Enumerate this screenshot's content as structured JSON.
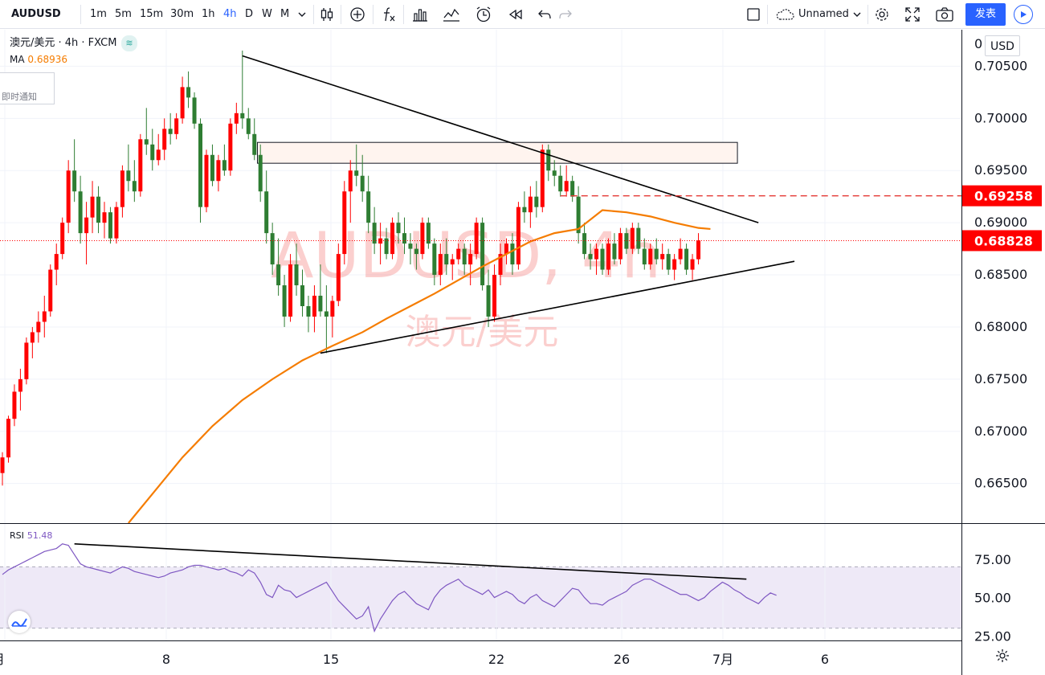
{
  "toolbar": {
    "symbol": "AUDUSD",
    "intervals": [
      "1m",
      "5m",
      "15m",
      "30m",
      "1h",
      "4h",
      "D",
      "W",
      "M"
    ],
    "active_interval": "4h",
    "layout_name": "Unnamed",
    "publish_label": "发表"
  },
  "legend": {
    "title": "澳元/美元 · 4h · FXCM",
    "ma_label": "MA",
    "ma_value": "0.68936",
    "rsi_label": "RSI",
    "rsi_value": "51.48",
    "alert_tab": "即时通知",
    "currency": "USD"
  },
  "watermark": {
    "line1": "AUDUSD, 4h",
    "line2": "澳元/美元"
  },
  "colors": {
    "up": "#ff0000",
    "down": "#2e7d32",
    "ma": "#f57c00",
    "rsi": "#7e57c2",
    "accent": "#2962ff"
  },
  "chart_data": {
    "type": "candlestick",
    "price_axis": {
      "min": 0.6612,
      "max": 0.7085,
      "ticks": [
        "0.70500",
        "0.70000",
        "0.69500",
        "0.69000",
        "0.68500",
        "0.68000",
        "0.67500",
        "0.67000",
        "0.66500"
      ],
      "tick_values": [
        0.705,
        0.7,
        0.695,
        0.69,
        0.685,
        0.68,
        0.675,
        0.67,
        0.665
      ],
      "top_partial_label": "0"
    },
    "time_axis": {
      "labels": [
        "月",
        "8",
        "15",
        "22",
        "26",
        "7月",
        "6"
      ]
    },
    "price_labels": [
      {
        "value": 0.69258,
        "text": "0.69258",
        "style": "dashed"
      },
      {
        "value": 0.68828,
        "text": "0.68828",
        "style": "last-price"
      }
    ],
    "candles": [
      [
        0.666,
        0.668,
        0.6648,
        0.6675
      ],
      [
        0.6675,
        0.6715,
        0.667,
        0.6712
      ],
      [
        0.6712,
        0.6745,
        0.6705,
        0.6738
      ],
      [
        0.6738,
        0.676,
        0.672,
        0.675
      ],
      [
        0.675,
        0.679,
        0.6745,
        0.6785
      ],
      [
        0.6785,
        0.68,
        0.677,
        0.6795
      ],
      [
        0.6795,
        0.6815,
        0.6785,
        0.6805
      ],
      [
        0.6805,
        0.683,
        0.679,
        0.6815
      ],
      [
        0.6815,
        0.686,
        0.681,
        0.6855
      ],
      [
        0.6855,
        0.688,
        0.684,
        0.687
      ],
      [
        0.687,
        0.6905,
        0.6865,
        0.69
      ],
      [
        0.69,
        0.696,
        0.689,
        0.695
      ],
      [
        0.695,
        0.698,
        0.692,
        0.693
      ],
      [
        0.693,
        0.6945,
        0.688,
        0.689
      ],
      [
        0.689,
        0.692,
        0.686,
        0.6905
      ],
      [
        0.6905,
        0.694,
        0.689,
        0.6925
      ],
      [
        0.6925,
        0.6935,
        0.689,
        0.69
      ],
      [
        0.69,
        0.692,
        0.6885,
        0.691
      ],
      [
        0.691,
        0.6915,
        0.688,
        0.6885
      ],
      [
        0.6885,
        0.692,
        0.688,
        0.6915
      ],
      [
        0.6915,
        0.6955,
        0.6905,
        0.695
      ],
      [
        0.695,
        0.6975,
        0.693,
        0.694
      ],
      [
        0.694,
        0.696,
        0.692,
        0.693
      ],
      [
        0.693,
        0.6985,
        0.6925,
        0.698
      ],
      [
        0.698,
        0.701,
        0.6965,
        0.6975
      ],
      [
        0.6975,
        0.699,
        0.695,
        0.696
      ],
      [
        0.696,
        0.6985,
        0.6955,
        0.697
      ],
      [
        0.697,
        0.7,
        0.696,
        0.699
      ],
      [
        0.699,
        0.7005,
        0.6975,
        0.6985
      ],
      [
        0.6985,
        0.7005,
        0.698,
        0.7
      ],
      [
        0.7,
        0.704,
        0.6995,
        0.703
      ],
      [
        0.703,
        0.7045,
        0.701,
        0.702
      ],
      [
        0.702,
        0.7025,
        0.699,
        0.6995
      ],
      [
        0.6995,
        0.7,
        0.69,
        0.6915
      ],
      [
        0.6915,
        0.697,
        0.691,
        0.6965
      ],
      [
        0.6965,
        0.6975,
        0.6935,
        0.694
      ],
      [
        0.694,
        0.6965,
        0.693,
        0.696
      ],
      [
        0.696,
        0.6975,
        0.6945,
        0.695
      ],
      [
        0.695,
        0.7,
        0.6945,
        0.6995
      ],
      [
        0.6995,
        0.7015,
        0.6985,
        0.7005
      ],
      [
        0.7005,
        0.7065,
        0.699,
        0.7
      ],
      [
        0.7,
        0.701,
        0.698,
        0.6985
      ],
      [
        0.6985,
        0.7,
        0.696,
        0.6965
      ],
      [
        0.6965,
        0.6975,
        0.692,
        0.693
      ],
      [
        0.693,
        0.695,
        0.688,
        0.689
      ],
      [
        0.689,
        0.69,
        0.685,
        0.686
      ],
      [
        0.686,
        0.6885,
        0.683,
        0.684
      ],
      [
        0.684,
        0.685,
        0.68,
        0.681
      ],
      [
        0.681,
        0.687,
        0.6805,
        0.686
      ],
      [
        0.686,
        0.688,
        0.683,
        0.684
      ],
      [
        0.684,
        0.6855,
        0.681,
        0.682
      ],
      [
        0.682,
        0.683,
        0.6795,
        0.681
      ],
      [
        0.681,
        0.684,
        0.6795,
        0.683
      ],
      [
        0.683,
        0.686,
        0.681,
        0.6815
      ],
      [
        0.6815,
        0.684,
        0.6775,
        0.681
      ],
      [
        0.681,
        0.683,
        0.679,
        0.6825
      ],
      [
        0.6825,
        0.688,
        0.682,
        0.687
      ],
      [
        0.687,
        0.694,
        0.686,
        0.693
      ],
      [
        0.693,
        0.696,
        0.69,
        0.695
      ],
      [
        0.695,
        0.6975,
        0.6935,
        0.6945
      ],
      [
        0.6945,
        0.6965,
        0.692,
        0.693
      ],
      [
        0.693,
        0.6945,
        0.689,
        0.69
      ],
      [
        0.69,
        0.6915,
        0.687,
        0.688
      ],
      [
        0.688,
        0.69,
        0.686,
        0.6885
      ],
      [
        0.6885,
        0.6895,
        0.6865,
        0.687
      ],
      [
        0.687,
        0.6905,
        0.6865,
        0.69
      ],
      [
        0.69,
        0.691,
        0.688,
        0.689
      ],
      [
        0.689,
        0.6905,
        0.687,
        0.688
      ],
      [
        0.688,
        0.689,
        0.686,
        0.6875
      ],
      [
        0.6875,
        0.688,
        0.6855,
        0.687
      ],
      [
        0.687,
        0.6905,
        0.6865,
        0.69
      ],
      [
        0.69,
        0.6905,
        0.6875,
        0.688
      ],
      [
        0.688,
        0.6885,
        0.684,
        0.685
      ],
      [
        0.685,
        0.688,
        0.684,
        0.687
      ],
      [
        0.687,
        0.6885,
        0.685,
        0.686
      ],
      [
        0.686,
        0.687,
        0.6845,
        0.6865
      ],
      [
        0.6865,
        0.688,
        0.686,
        0.6875
      ],
      [
        0.6875,
        0.688,
        0.685,
        0.686
      ],
      [
        0.686,
        0.688,
        0.684,
        0.687
      ],
      [
        0.687,
        0.6905,
        0.6865,
        0.69
      ],
      [
        0.69,
        0.6905,
        0.6835,
        0.684
      ],
      [
        0.684,
        0.6855,
        0.68,
        0.681
      ],
      [
        0.681,
        0.686,
        0.6805,
        0.685
      ],
      [
        0.685,
        0.688,
        0.684,
        0.687
      ],
      [
        0.687,
        0.6885,
        0.686,
        0.688
      ],
      [
        0.688,
        0.689,
        0.685,
        0.686
      ],
      [
        0.686,
        0.692,
        0.6855,
        0.6915
      ],
      [
        0.6915,
        0.693,
        0.69,
        0.691
      ],
      [
        0.691,
        0.6935,
        0.6895,
        0.6925
      ],
      [
        0.6925,
        0.694,
        0.6905,
        0.6915
      ],
      [
        0.6915,
        0.6975,
        0.691,
        0.697
      ],
      [
        0.697,
        0.6975,
        0.694,
        0.695
      ],
      [
        0.695,
        0.696,
        0.6935,
        0.6945
      ],
      [
        0.6945,
        0.6955,
        0.6925,
        0.693
      ],
      [
        0.693,
        0.6955,
        0.6925,
        0.694
      ],
      [
        0.694,
        0.6945,
        0.692,
        0.6925
      ],
      [
        0.6925,
        0.6935,
        0.688,
        0.689
      ],
      [
        0.689,
        0.69,
        0.6865,
        0.687
      ],
      [
        0.687,
        0.688,
        0.6855,
        0.6865
      ],
      [
        0.6865,
        0.688,
        0.685,
        0.6875
      ],
      [
        0.6875,
        0.688,
        0.685,
        0.6855
      ],
      [
        0.6855,
        0.6885,
        0.685,
        0.688
      ],
      [
        0.688,
        0.689,
        0.686,
        0.6865
      ],
      [
        0.6865,
        0.6895,
        0.686,
        0.689
      ],
      [
        0.689,
        0.6895,
        0.687,
        0.6875
      ],
      [
        0.6875,
        0.69,
        0.687,
        0.6895
      ],
      [
        0.6895,
        0.69,
        0.687,
        0.6875
      ],
      [
        0.6875,
        0.6885,
        0.6855,
        0.686
      ],
      [
        0.686,
        0.688,
        0.6855,
        0.6875
      ],
      [
        0.6875,
        0.6885,
        0.686,
        0.6865
      ],
      [
        0.6865,
        0.688,
        0.6855,
        0.687
      ],
      [
        0.687,
        0.6875,
        0.685,
        0.6855
      ],
      [
        0.6855,
        0.687,
        0.6845,
        0.6865
      ],
      [
        0.6865,
        0.6885,
        0.686,
        0.6875
      ],
      [
        0.6875,
        0.688,
        0.685,
        0.6855
      ],
      [
        0.6855,
        0.687,
        0.6845,
        0.6865
      ],
      [
        0.6865,
        0.689,
        0.686,
        0.6883
      ]
    ],
    "ma": {
      "label": "MA",
      "points": [
        [
          21,
          0.6612
        ],
        [
          25,
          0.664
        ],
        [
          30,
          0.6675
        ],
        [
          35,
          0.6705
        ],
        [
          40,
          0.673
        ],
        [
          45,
          0.675
        ],
        [
          50,
          0.6768
        ],
        [
          55,
          0.6782
        ],
        [
          60,
          0.6795
        ],
        [
          64,
          0.6808
        ],
        [
          68,
          0.682
        ],
        [
          72,
          0.6832
        ],
        [
          76,
          0.6845
        ],
        [
          80,
          0.6858
        ],
        [
          84,
          0.687
        ],
        [
          88,
          0.6882
        ],
        [
          92,
          0.689
        ],
        [
          96,
          0.6894
        ],
        [
          100,
          0.6912
        ],
        [
          104,
          0.691
        ],
        [
          108,
          0.6906
        ],
        [
          112,
          0.69
        ],
        [
          116,
          0.6895
        ],
        [
          118,
          0.6894
        ]
      ]
    },
    "rsi": {
      "range": [
        22,
        98
      ],
      "ticks": [
        "75.00",
        "50.00",
        "25.00"
      ],
      "tick_values": [
        75,
        50,
        25
      ],
      "band": [
        70,
        30
      ],
      "values": [
        65,
        68,
        70,
        72,
        74,
        76,
        78,
        80,
        81,
        82,
        85,
        84,
        78,
        72,
        70,
        69,
        68,
        67,
        66,
        68,
        70,
        69,
        67,
        66,
        65,
        64,
        63,
        64,
        66,
        67,
        68,
        70,
        71,
        71,
        70,
        69,
        68,
        69,
        67,
        66,
        64,
        68,
        66,
        60,
        52,
        50,
        58,
        55,
        54,
        50,
        52,
        54,
        56,
        58,
        60,
        54,
        48,
        44,
        40,
        36,
        38,
        44,
        28,
        36,
        42,
        48,
        52,
        54,
        50,
        46,
        44,
        42,
        50,
        55,
        58,
        60,
        62,
        58,
        56,
        54,
        52,
        55,
        50,
        52,
        54,
        52,
        48,
        46,
        50,
        52,
        48,
        46,
        44,
        48,
        52,
        56,
        55,
        50,
        46,
        46,
        45,
        48,
        50,
        52,
        54,
        58,
        60,
        62,
        62,
        60,
        58,
        56,
        54,
        52,
        52,
        50,
        48,
        50,
        54,
        57,
        60,
        58,
        55,
        53,
        50,
        48,
        46,
        50,
        53,
        51.48
      ]
    },
    "annotations": {
      "resistance_line": [
        [
          40,
          0.706
        ],
        [
          126,
          0.69
        ]
      ],
      "support_line": [
        [
          53,
          0.6775
        ],
        [
          132,
          0.6863
        ]
      ],
      "rsi_trendline": [
        [
          12,
          85
        ],
        [
          124,
          62
        ]
      ],
      "zone": {
        "x0": 42.5,
        "x1": 122.5,
        "top": 0.6977,
        "bottom": 0.6957
      }
    }
  }
}
